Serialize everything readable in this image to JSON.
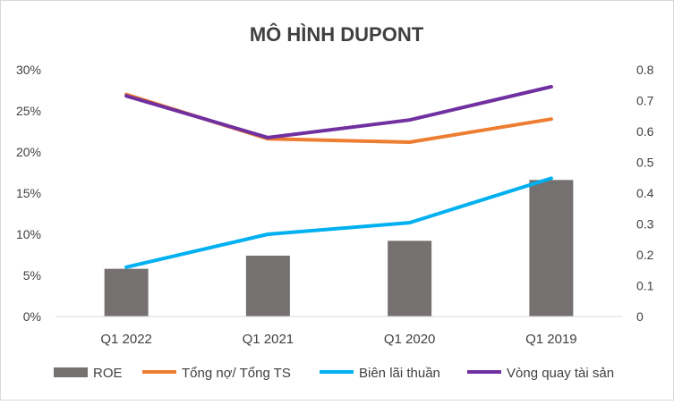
{
  "chart_data": {
    "type": "bar",
    "title": "MÔ HÌNH DUPONT",
    "categories": [
      "Q1 2022",
      "Q1 2021",
      "Q1 2020",
      "Q1 2019"
    ],
    "y_left": {
      "ticks": [
        "0%",
        "5%",
        "10%",
        "15%",
        "20%",
        "25%",
        "30%"
      ],
      "ylim": [
        0,
        0.3
      ]
    },
    "y_right": {
      "ticks": [
        "0",
        "0.1",
        "0.2",
        "0.3",
        "0.4",
        "0.5",
        "0.6",
        "0.7",
        "0.8"
      ],
      "ylim": [
        0,
        0.8
      ]
    },
    "grid": false,
    "legend_position": "bottom",
    "series": [
      {
        "name": "ROE",
        "kind": "bar",
        "axis": "left",
        "color": "#767171",
        "values": [
          0.058,
          0.074,
          0.092,
          0.166
        ]
      },
      {
        "name": "Tổng nợ/ Tổng TS",
        "kind": "line",
        "axis": "left",
        "color": "#ED7D31",
        "values": [
          0.27,
          0.216,
          0.212,
          0.24
        ]
      },
      {
        "name": "Biên lãi thuần",
        "kind": "line",
        "axis": "left",
        "color": "#00B0F0",
        "values": [
          0.06,
          0.1,
          0.114,
          0.168
        ]
      },
      {
        "name": "Vòng quay tài sản",
        "kind": "line",
        "axis": "right",
        "color": "#7030A0",
        "values": [
          0.715,
          0.58,
          0.637,
          0.745
        ]
      }
    ]
  }
}
